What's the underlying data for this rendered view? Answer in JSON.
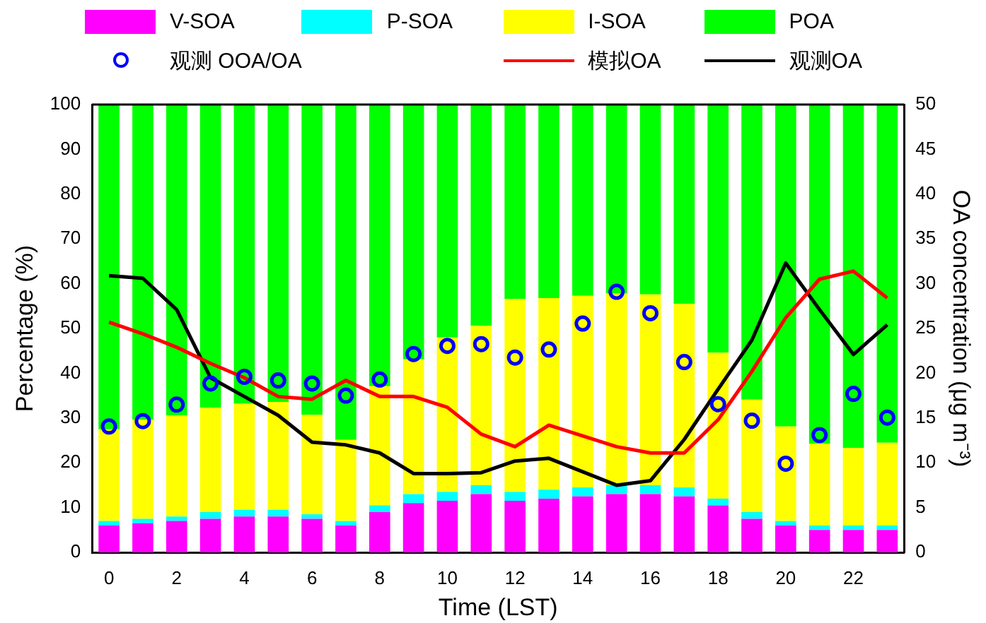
{
  "chart_data": {
    "type": "bar",
    "stacked": true,
    "xlabel": "Time (LST)",
    "ylabel": "Percentage (%)",
    "y2label": "OA concentration (μg m⁻³)",
    "categories": [
      "0",
      null,
      "2",
      null,
      "4",
      null,
      "6",
      null,
      "8",
      null,
      "10",
      null,
      "12",
      null,
      "14",
      null,
      "16",
      null,
      "18",
      null,
      "20",
      null,
      "22",
      null
    ],
    "ylim": [
      0,
      100
    ],
    "yticks": [
      0,
      10,
      20,
      30,
      40,
      50,
      60,
      70,
      80,
      90,
      100
    ],
    "y2lim": [
      0,
      50
    ],
    "y2ticks": [
      0,
      5,
      10,
      15,
      20,
      25,
      30,
      35,
      40,
      45,
      50
    ],
    "grid": false,
    "legend": "top",
    "series": [
      {
        "name": "V-SOA",
        "color": "#ff00ff",
        "values": [
          6,
          6.5,
          7,
          7.5,
          8,
          8,
          7.5,
          6,
          9,
          11,
          11.5,
          13,
          11.5,
          12,
          12.5,
          13,
          13,
          12.5,
          10.5,
          7.5,
          6,
          5,
          5,
          5
        ]
      },
      {
        "name": "P-SOA",
        "color": "#00ffff",
        "values": [
          1,
          1,
          1,
          1.5,
          1.5,
          1.5,
          1,
          1,
          1.5,
          2,
          2,
          2,
          2,
          2,
          2,
          2,
          2,
          2,
          1.5,
          1.5,
          1,
          1,
          1,
          1
        ]
      },
      {
        "name": "I-SOA",
        "color": "#ffff00",
        "values": [
          20.5,
          22.1,
          22.6,
          23.3,
          23.7,
          24.1,
          22.2,
          18.1,
          26.6,
          30.1,
          34.5,
          35.6,
          43.1,
          42.8,
          42.8,
          42.8,
          42.6,
          41,
          32.6,
          25.1,
          21.1,
          18.3,
          17.3,
          18.5
        ]
      },
      {
        "name": "POA",
        "color": "#00ff00",
        "values": [
          72.5,
          70.4,
          69.4,
          67.7,
          66.8,
          66.4,
          69.3,
          74.9,
          62.9,
          56.9,
          52,
          49.4,
          43.4,
          43.2,
          42.7,
          42.2,
          42.4,
          44.5,
          55.4,
          65.9,
          71.9,
          75.7,
          76.7,
          75.5
        ]
      },
      {
        "name": "观测 OOA/OA",
        "type": "scatter",
        "marker": "circle",
        "color": "#0000ff",
        "values": [
          28.1,
          29.3,
          33,
          37.7,
          39.2,
          38.4,
          37.7,
          35,
          38.6,
          44.3,
          46.1,
          46.5,
          43.5,
          45.3,
          51.1,
          58.2,
          53.4,
          42.5,
          33.1,
          29.4,
          19.8,
          26.2,
          35.4,
          30.1
        ]
      },
      {
        "name": "模拟OA",
        "type": "line",
        "axis": "y2",
        "line_style": "solid",
        "color": "#ff0000",
        "values": [
          25.7,
          24.4,
          22.9,
          21.1,
          19.5,
          17.4,
          17.1,
          19.2,
          17.4,
          17.4,
          16.2,
          13.2,
          11.8,
          14.2,
          13,
          11.8,
          11.1,
          11.1,
          14.8,
          20.2,
          26.2,
          30.5,
          31.4,
          28.4
        ]
      },
      {
        "name": "观测OA",
        "type": "line",
        "axis": "y2",
        "line_style": "solid",
        "color": "#000000",
        "values": [
          30.9,
          30.6,
          27.1,
          19.5,
          17.4,
          15.3,
          12.3,
          12,
          11.1,
          8.8,
          8.8,
          8.9,
          10.2,
          10.5,
          9,
          7.5,
          8,
          12.6,
          18.2,
          23.7,
          32.3,
          27.1,
          22.1,
          25.4
        ]
      }
    ]
  }
}
